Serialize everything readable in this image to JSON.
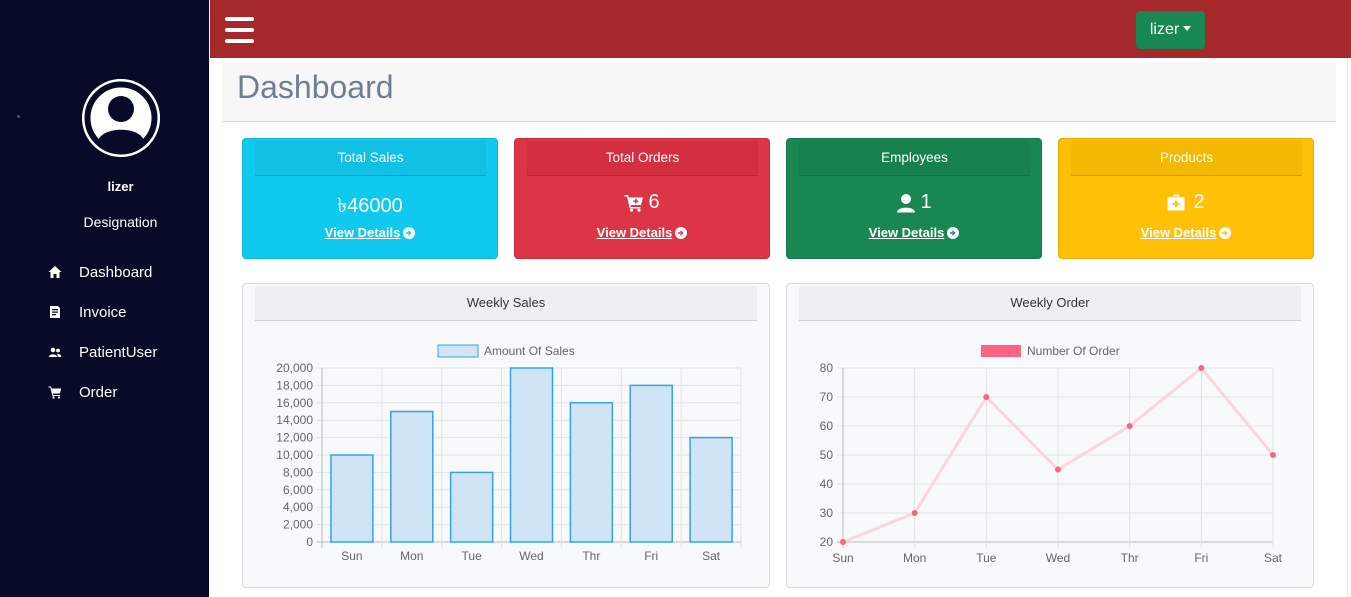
{
  "sidebar": {
    "user_name": "lizer",
    "designation": "Designation",
    "items": [
      {
        "label": "Dashboard",
        "icon": "home-icon"
      },
      {
        "label": "Invoice",
        "icon": "invoice-icon"
      },
      {
        "label": "PatientUser",
        "icon": "users-icon"
      },
      {
        "label": "Order",
        "icon": "cart-icon"
      }
    ]
  },
  "topbar": {
    "user_menu_label": "lizer"
  },
  "header": {
    "title": "Dashboard"
  },
  "cards": [
    {
      "title": "Total Sales",
      "value": "৳46000",
      "link": "View Details",
      "color": "#10c9ef"
    },
    {
      "title": "Total Orders",
      "value": "6",
      "link": "View Details",
      "color": "#dc3545"
    },
    {
      "title": "Employees",
      "value": "1",
      "link": "View Details",
      "color": "#198754"
    },
    {
      "title": "Products",
      "value": "2",
      "link": "View Details",
      "color": "#ffc107"
    }
  ],
  "colors": {
    "sidebar_bg": "#080b27",
    "topbar_bg": "#a5282b",
    "user_button_bg": "#198754",
    "sales_bar_fill": "#cfe5f5",
    "sales_bar_stroke": "#36a2eb",
    "orders_line": "#ff6384"
  },
  "chart_data": [
    {
      "type": "bar",
      "title": "Weekly Sales",
      "legend": "Amount Of Sales",
      "categories": [
        "Sun",
        "Mon",
        "Tue",
        "Wed",
        "Thr",
        "Fri",
        "Sat"
      ],
      "values": [
        10000,
        15000,
        8000,
        20000,
        16000,
        18000,
        12000
      ],
      "ylim": [
        0,
        20000
      ],
      "yticks": [
        "0",
        "2,000",
        "4,000",
        "6,000",
        "8,000",
        "10,000",
        "12,000",
        "14,000",
        "16,000",
        "18,000",
        "20,000"
      ],
      "ytick_values": [
        0,
        2000,
        4000,
        6000,
        8000,
        10000,
        12000,
        14000,
        16000,
        18000,
        20000
      ]
    },
    {
      "type": "line",
      "title": "Weekly Order",
      "legend": "Number Of Order",
      "categories": [
        "Sun",
        "Mon",
        "Tue",
        "Wed",
        "Thr",
        "Fri",
        "Sat"
      ],
      "values": [
        20,
        30,
        70,
        45,
        60,
        80,
        50
      ],
      "ylim": [
        20,
        80
      ],
      "yticks": [
        "20",
        "30",
        "40",
        "50",
        "60",
        "70",
        "80"
      ],
      "ytick_values": [
        20,
        30,
        40,
        50,
        60,
        70,
        80
      ]
    }
  ]
}
